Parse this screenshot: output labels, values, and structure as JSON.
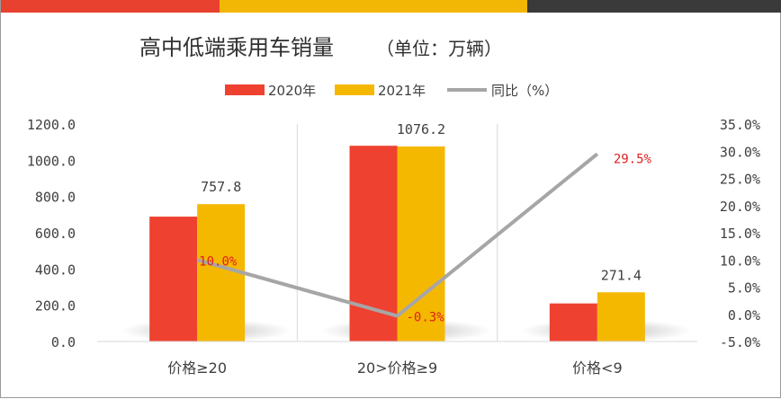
{
  "colors": {
    "top_bar": [
      "#e8412f",
      "#f2b705",
      "#3a3a3a"
    ],
    "series_2020": "#ef4130",
    "series_2021": "#f5b800",
    "yoy_line": "#a6a6a6",
    "yoy_label": "#e02020",
    "grid": "#d9d9d9"
  },
  "chart_data": {
    "type": "bar",
    "title": "高中低端乘用车销量",
    "unit": "（单位：万辆）",
    "categories": [
      "价格≥20",
      "20>价格≥9",
      "价格<9"
    ],
    "series": [
      {
        "name": "2020年",
        "values": [
          689,
          1080,
          210
        ]
      },
      {
        "name": "2021年",
        "values": [
          757.8,
          1076.2,
          271.4
        ]
      }
    ],
    "data_labels_2021": [
      "757.8",
      "1076.2",
      "271.4"
    ],
    "yoy": {
      "name": "同比（%）",
      "values": [
        10.0,
        -0.3,
        29.5
      ],
      "labels": [
        "10.0%",
        "-0.3%",
        "29.5%"
      ]
    },
    "y_left": {
      "ylim": [
        0,
        1200
      ],
      "ticks": [
        "0.0",
        "200.0",
        "400.0",
        "600.0",
        "800.0",
        "1000.0",
        "1200.0"
      ]
    },
    "y_right": {
      "ylim": [
        -5,
        35
      ],
      "ticks": [
        "-5.0%",
        "0.0%",
        "5.0%",
        "10.0%",
        "15.0%",
        "20.0%",
        "25.0%",
        "30.0%",
        "35.0%"
      ]
    },
    "legend_position": "top"
  }
}
